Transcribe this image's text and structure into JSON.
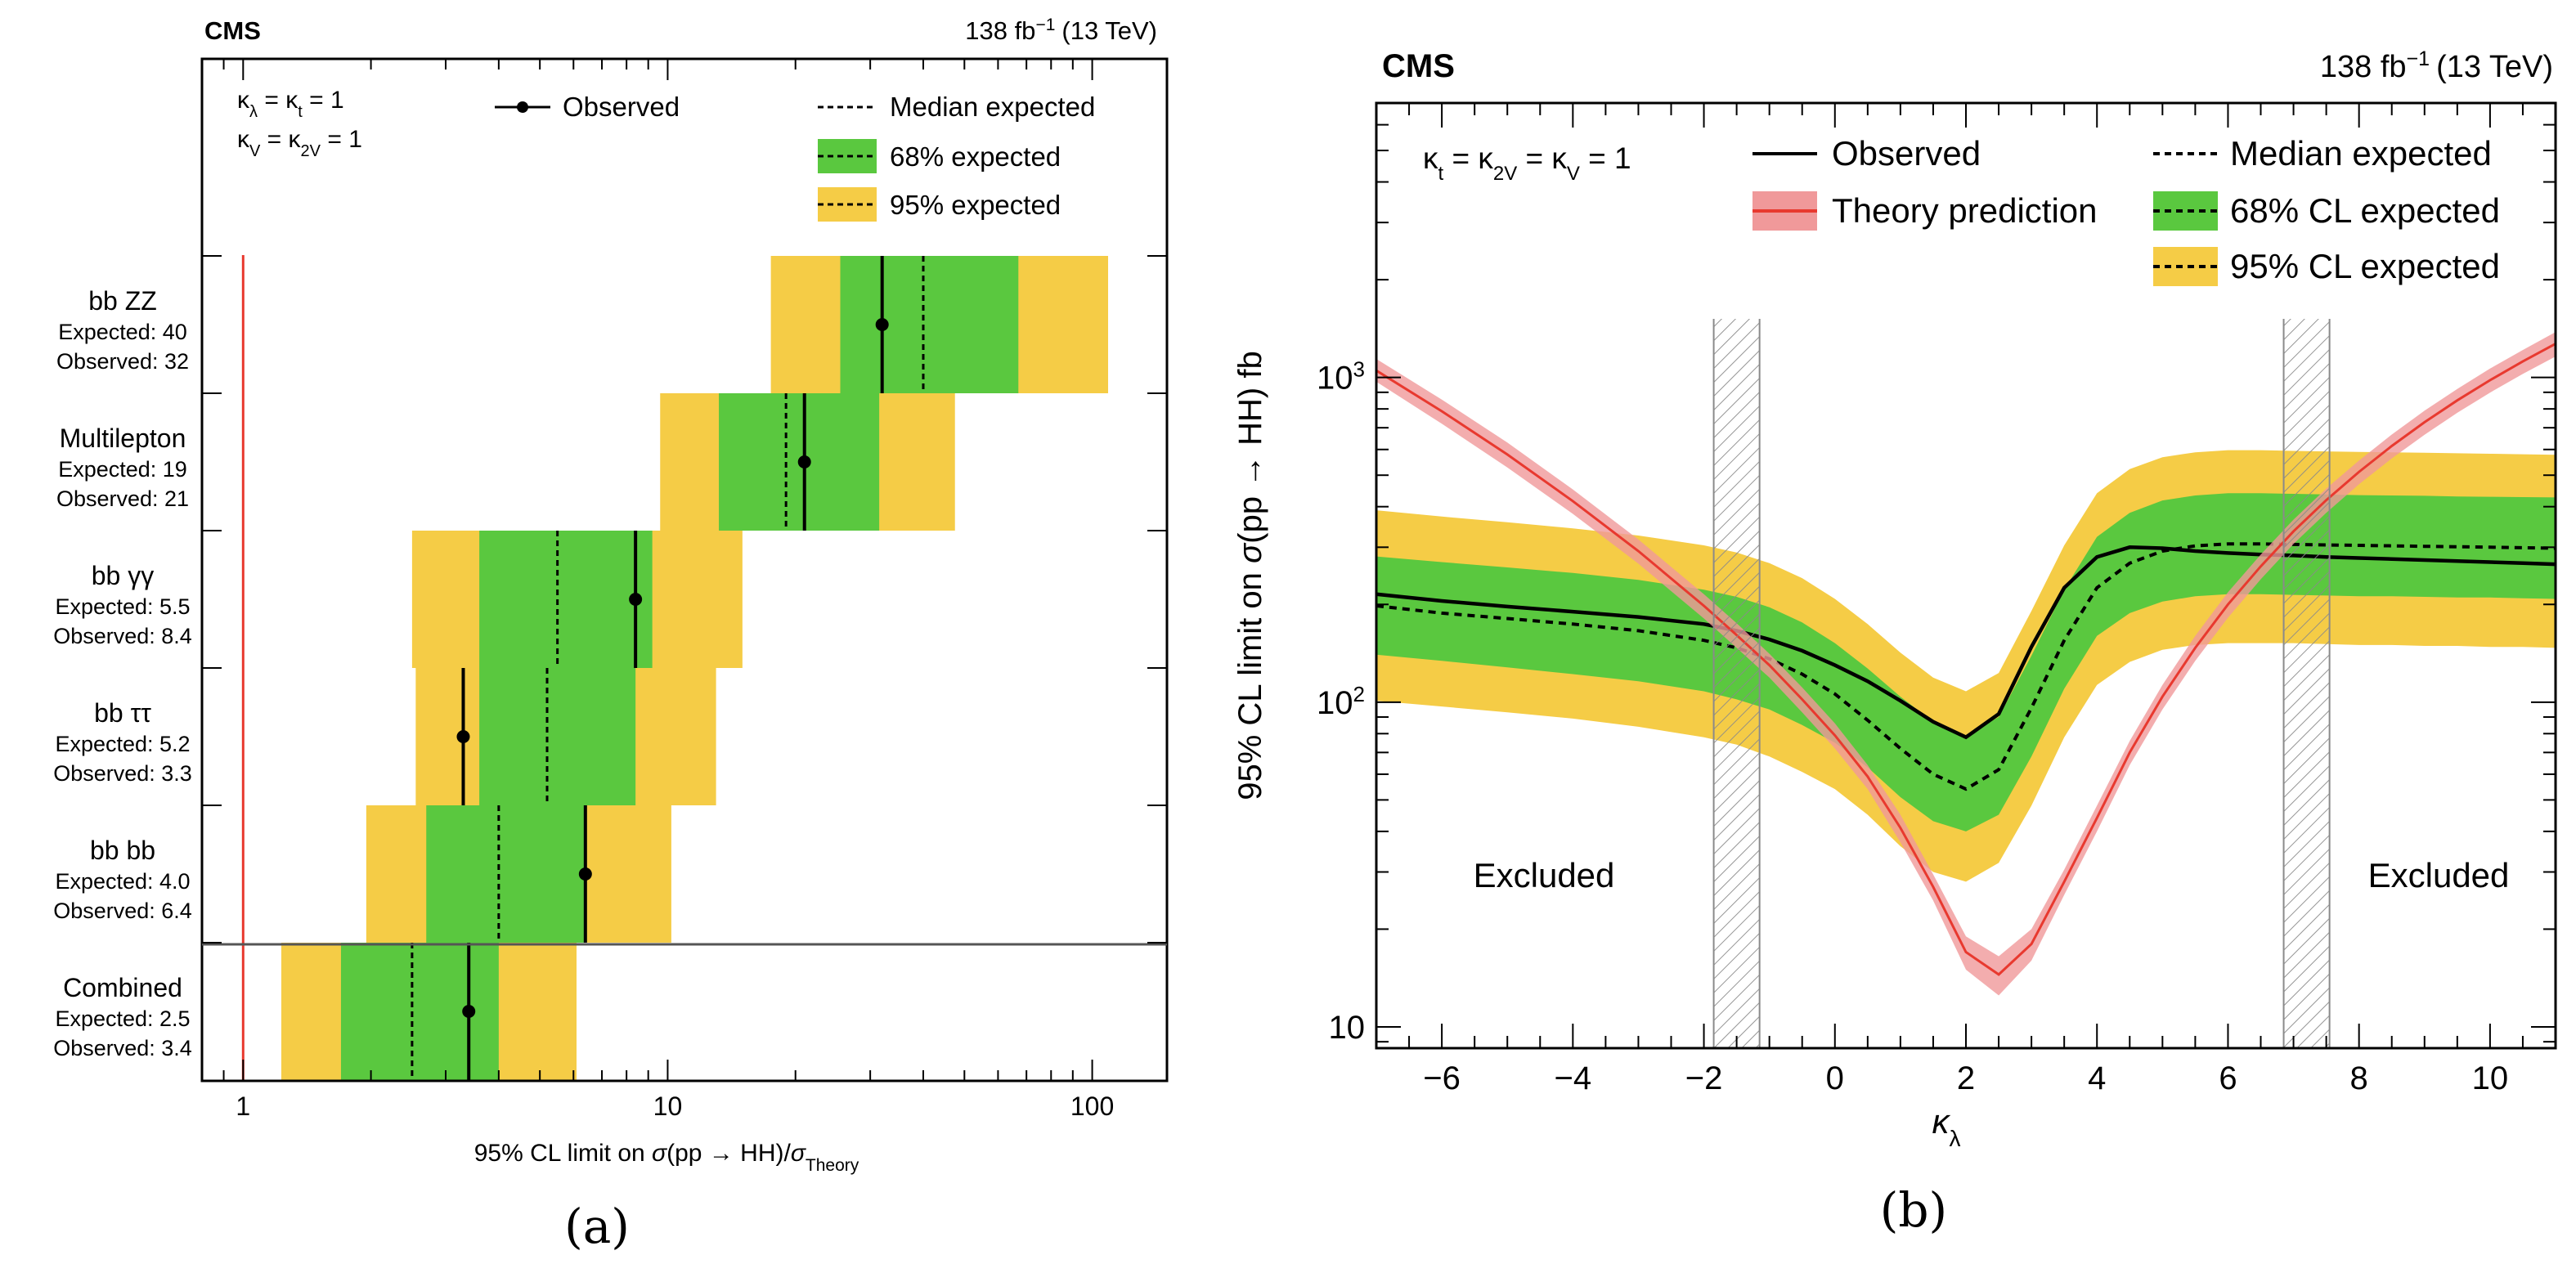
{
  "colors": {
    "green": "#5ac83f",
    "yellow": "#f5cc46",
    "theory_line": "#e8392f",
    "theory_band": "#f0999a",
    "hatch": "#8a8a8a",
    "axis": "#000000"
  },
  "captions": {
    "a": "(a)",
    "b": "(b)"
  },
  "chart_data": [
    {
      "type": "limit-summary",
      "experiment": "CMS",
      "lumi_main": "138 fb",
      "lumi_exp": "−1",
      "lumi_energy": "(13 TeV)",
      "coupling_line1": {
        "k": "κ",
        "s1": "λ",
        "eq": " = κ",
        "s2": "t",
        "val": " = 1"
      },
      "coupling_line2": {
        "k": "κ",
        "s1": "V",
        "eq": " = κ",
        "s2": "2V",
        "val": " = 1"
      },
      "legend": {
        "observed": "Observed",
        "median": "Median expected",
        "band68": "68% expected",
        "band95": "95% expected"
      },
      "xlabel": {
        "pre": "95% CL limit on ",
        "sigma": "σ",
        "mid": "(pp → HH)/",
        "sigma2": "σ",
        "sub": "Theory"
      },
      "xscale": "log",
      "xlim": [
        0.8,
        150
      ],
      "xticks": [
        {
          "value": 1,
          "label": "1"
        },
        {
          "value": 10,
          "label": "10"
        },
        {
          "value": 100,
          "label": "100"
        }
      ],
      "reference_line": 1,
      "channels": [
        {
          "name": "bb ZZ",
          "exp_label": "Expected: 40",
          "obs_label": "Observed: 32",
          "observed": 32,
          "expected": 40,
          "band68": [
            25.5,
            67
          ],
          "band95": [
            17.5,
            109
          ]
        },
        {
          "name": "Multilepton",
          "exp_label": "Expected: 19",
          "obs_label": "Observed: 21",
          "observed": 21,
          "expected": 19,
          "band68": [
            13.2,
            31.5
          ],
          "band95": [
            9.6,
            47.5
          ]
        },
        {
          "name": "bb γγ",
          "exp_label": "Expected: 5.5",
          "obs_label": "Observed: 8.4",
          "observed": 8.4,
          "expected": 5.5,
          "band68": [
            3.6,
            9.2
          ],
          "band95": [
            2.5,
            15
          ]
        },
        {
          "name": "bb ττ",
          "exp_label": "Expected: 5.2",
          "obs_label": "Observed: 3.3",
          "observed": 3.3,
          "expected": 5.2,
          "band68": [
            3.6,
            8.4
          ],
          "band95": [
            2.55,
            13
          ]
        },
        {
          "name": "bb bb",
          "exp_label": "Expected: 4.0",
          "obs_label": "Observed: 6.4",
          "observed": 6.4,
          "expected": 4.0,
          "band68": [
            2.7,
            6.4
          ],
          "band95": [
            1.95,
            10.2
          ]
        },
        {
          "name": "Combined",
          "exp_label": "Expected: 2.5",
          "obs_label": "Observed: 3.4",
          "observed": 3.4,
          "expected": 2.5,
          "band68": [
            1.7,
            4.0
          ],
          "band95": [
            1.23,
            6.1
          ]
        }
      ]
    },
    {
      "type": "line",
      "experiment": "CMS",
      "lumi_main": "138 fb",
      "lumi_exp": "−1",
      "lumi_energy": "(13 TeV)",
      "coupling": {
        "k1": "κ",
        "s1": "t",
        "eq1": " = κ",
        "s2": "2V",
        "eq2": " = κ",
        "s3": "V",
        "val": " = 1"
      },
      "legend": {
        "observed": "Observed",
        "theory": "Theory prediction",
        "median": "Median expected",
        "band68": "68% CL expected",
        "band95": "95% CL expected"
      },
      "ylabel": {
        "pre": "95% CL limit on ",
        "sigma": "σ",
        "post": "(pp → HH) fb"
      },
      "xlabel": {
        "k": "κ",
        "sub": "λ"
      },
      "xlim": [
        -7,
        11
      ],
      "ylim": [
        8.6,
        7000
      ],
      "yscale": "log",
      "xticks": [
        {
          "value": -6,
          "label": "−6"
        },
        {
          "value": -4,
          "label": "−4"
        },
        {
          "value": -2,
          "label": "−2"
        },
        {
          "value": 0,
          "label": "0"
        },
        {
          "value": 2,
          "label": "2"
        },
        {
          "value": 4,
          "label": "4"
        },
        {
          "value": 6,
          "label": "6"
        },
        {
          "value": 8,
          "label": "8"
        },
        {
          "value": 10,
          "label": "10"
        }
      ],
      "yticks": [
        {
          "value": 10,
          "label": "10",
          "exp": ""
        },
        {
          "value": 100,
          "label": "10",
          "exp": "2"
        },
        {
          "value": 1000,
          "label": "10",
          "exp": "3"
        }
      ],
      "excluded_label": "Excluded",
      "excluded_regions": [
        {
          "x1": -1.85,
          "x2": -1.15
        },
        {
          "x1": 6.85,
          "x2": 7.55
        }
      ],
      "x": [
        -7,
        -6,
        -5,
        -4,
        -3,
        -2,
        -1.5,
        -1,
        -0.5,
        0,
        0.5,
        1,
        1.5,
        2,
        2.5,
        3,
        3.5,
        4,
        4.5,
        5,
        5.5,
        6,
        6.5,
        7,
        7.5,
        8,
        8.5,
        9,
        9.5,
        10,
        10.5,
        11
      ],
      "observed": [
        215,
        205,
        197,
        190,
        183,
        174,
        166,
        156,
        144,
        130,
        116,
        101,
        87,
        78,
        92,
        148,
        225,
        280,
        300,
        298,
        292,
        288,
        285,
        283,
        280,
        278,
        276,
        274,
        272,
        270,
        268,
        266
      ],
      "expected": [
        198,
        188,
        181,
        174,
        166,
        155,
        147,
        136,
        122,
        106,
        88,
        72,
        60,
        54,
        62,
        96,
        155,
        225,
        268,
        292,
        303,
        307,
        307,
        306,
        305,
        304,
        303,
        302,
        301,
        300,
        299,
        298
      ],
      "band68": [
        [
          140,
          281
        ],
        [
          134,
          270
        ],
        [
          128,
          260
        ],
        [
          122,
          250
        ],
        [
          116,
          238
        ],
        [
          108,
          222
        ],
        [
          102,
          211
        ],
        [
          95,
          196
        ],
        [
          85,
          176
        ],
        [
          75,
          152
        ],
        [
          63,
          127
        ],
        [
          51,
          104
        ],
        [
          43,
          87
        ],
        [
          40,
          79
        ],
        [
          45,
          90
        ],
        [
          68,
          139
        ],
        [
          110,
          222
        ],
        [
          160,
          323
        ],
        [
          188,
          383
        ],
        [
          204,
          418
        ],
        [
          212,
          433
        ],
        [
          215,
          440
        ],
        [
          215,
          440
        ],
        [
          214,
          438
        ],
        [
          213,
          436
        ],
        [
          212,
          434
        ],
        [
          212,
          433
        ],
        [
          211,
          432
        ],
        [
          210,
          430
        ],
        [
          210,
          429
        ],
        [
          209,
          428
        ],
        [
          208,
          427
        ]
      ],
      "band95": [
        [
          101,
          390
        ],
        [
          97,
          373
        ],
        [
          93,
          358
        ],
        [
          89,
          343
        ],
        [
          84,
          326
        ],
        [
          78,
          304
        ],
        [
          74,
          289
        ],
        [
          68,
          268
        ],
        [
          61,
          241
        ],
        [
          54,
          208
        ],
        [
          45,
          174
        ],
        [
          36,
          142
        ],
        [
          30,
          119
        ],
        [
          28,
          108
        ],
        [
          32,
          123
        ],
        [
          48,
          191
        ],
        [
          78,
          304
        ],
        [
          113,
          440
        ],
        [
          133,
          522
        ],
        [
          145,
          568
        ],
        [
          150,
          588
        ],
        [
          152,
          597
        ],
        [
          152,
          597
        ],
        [
          152,
          594
        ],
        [
          151,
          592
        ],
        [
          150,
          590
        ],
        [
          150,
          588
        ],
        [
          149,
          586
        ],
        [
          149,
          584
        ],
        [
          148,
          582
        ],
        [
          148,
          580
        ],
        [
          147,
          578
        ]
      ],
      "theory": [
        1050,
        787,
        579,
        416,
        292,
        198,
        161,
        130,
        102,
        79,
        59,
        41,
        27,
        17,
        14.5,
        18,
        28,
        44,
        70,
        104,
        147,
        200,
        262,
        336,
        419,
        512,
        615,
        728,
        850,
        981,
        1120,
        1270
      ],
      "theory_band": [
        [
          970,
          1140
        ],
        [
          720,
          855
        ],
        [
          528,
          630
        ],
        [
          380,
          452
        ],
        [
          267,
          317
        ],
        [
          181,
          215
        ],
        [
          147,
          175
        ],
        [
          119,
          141
        ],
        [
          93,
          111
        ],
        [
          72,
          86
        ],
        [
          54,
          64
        ],
        [
          37,
          45
        ],
        [
          24.5,
          29.5
        ],
        [
          15,
          19
        ],
        [
          12.5,
          16.5
        ],
        [
          16,
          20
        ],
        [
          25.5,
          30.5
        ],
        [
          40,
          48
        ],
        [
          64,
          76
        ],
        [
          95,
          113
        ],
        [
          134,
          160
        ],
        [
          182,
          218
        ],
        [
          239,
          285
        ],
        [
          307,
          365
        ],
        [
          383,
          455
        ],
        [
          469,
          555
        ],
        [
          563,
          667
        ],
        [
          666,
          790
        ],
        [
          778,
          922
        ],
        [
          898,
          1065
        ],
        [
          1025,
          1215
        ],
        [
          1160,
          1380
        ]
      ]
    }
  ]
}
